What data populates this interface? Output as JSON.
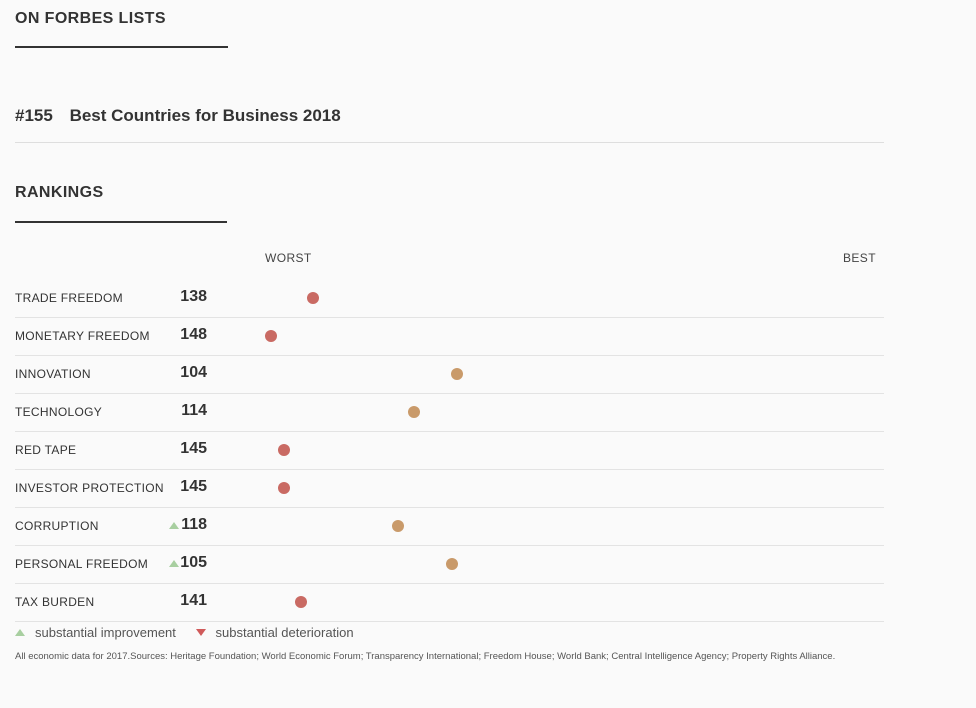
{
  "lists_section": {
    "title": "ON FORBES LISTS"
  },
  "list_entry": {
    "rank": "#155",
    "name": "Best Countries for Business 2018"
  },
  "rankings_section": {
    "title": "RANKINGS"
  },
  "scale": {
    "worst": "WORST",
    "best": "BEST"
  },
  "colors": {
    "poor": "#c96a63",
    "middle": "#c99a6a",
    "improvement": "#a8cfa0",
    "deterioration": "#d05a5a"
  },
  "legend": {
    "improvement": "substantial improvement",
    "deterioration": "substantial deterioration"
  },
  "sources": "All economic data for 2017.Sources: Heritage Foundation; World Economic Forum; Transparency International; Freedom House; World Bank; Central Intelligence Agency; Property Rights Alliance.",
  "chart_data": {
    "type": "scatter",
    "scale_range": [
      153,
      1
    ],
    "categories": [
      "TRADE FREEDOM",
      "MONETARY FREEDOM",
      "INNOVATION",
      "TECHNOLOGY",
      "RED TAPE",
      "INVESTOR PROTECTION",
      "CORRUPTION",
      "PERSONAL FREEDOM",
      "TAX BURDEN"
    ],
    "values": [
      138,
      148,
      104,
      114,
      145,
      145,
      118,
      105,
      141
    ],
    "trend": [
      "",
      "",
      "",
      "",
      "",
      "",
      "up",
      "up",
      ""
    ],
    "color_group": [
      "poor",
      "poor",
      "middle",
      "middle",
      "poor",
      "poor",
      "middle",
      "middle",
      "poor"
    ]
  }
}
